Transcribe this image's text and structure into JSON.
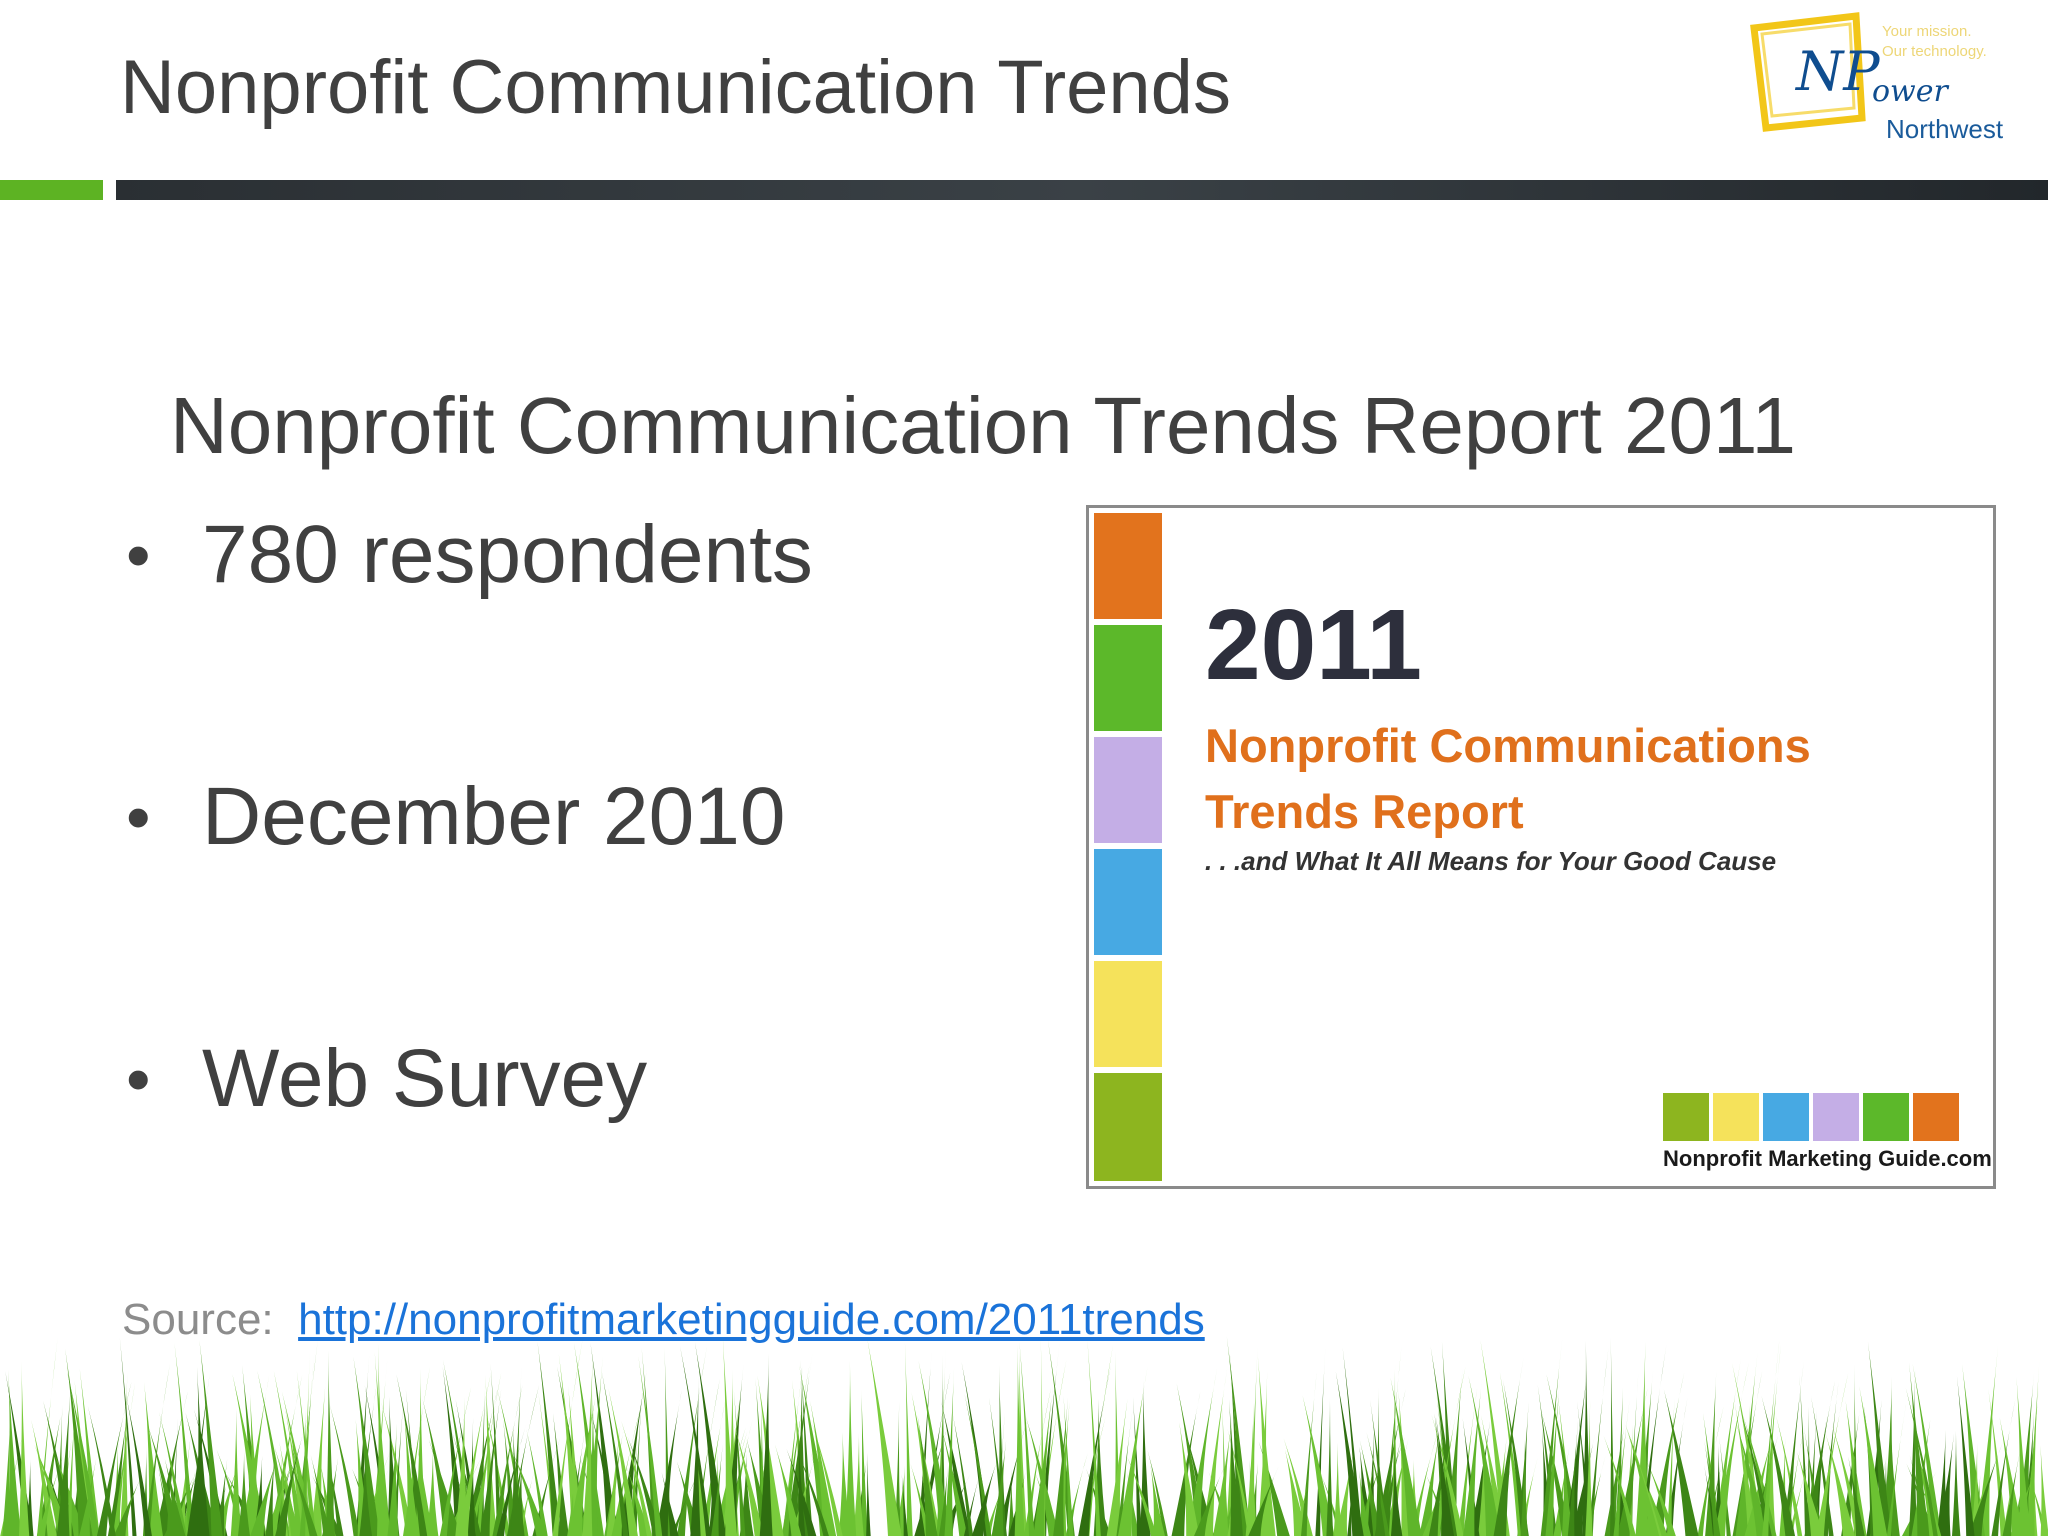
{
  "header": {
    "title": "Nonprofit Communication Trends",
    "logo": {
      "tagline_line1": "Your mission.",
      "tagline_line2": "Our technology.",
      "np": "NP",
      "ower": "ower",
      "northwest": "Northwest"
    }
  },
  "main": {
    "subtitle": "Nonprofit Communication Trends Report 2011",
    "bullets": [
      {
        "label": "780 respondents"
      },
      {
        "label": "December 2010"
      },
      {
        "label": "Web Survey"
      }
    ],
    "bullet_glyph": "•"
  },
  "cover": {
    "year": "2011",
    "title_line1": "Nonprofit Communications",
    "title_line2": "Trends Report",
    "tagline": ". . .and What It All Means for Your Good Cause",
    "brand": "Nonprofit Marketing Guide.com",
    "stripe_colors": [
      "#e2731d",
      "#5cb82a",
      "#c4aee6",
      "#47a9e3",
      "#f5e25b",
      "#8db51f"
    ],
    "swatch_colors": [
      "#8db51f",
      "#f5e25b",
      "#47a9e3",
      "#c4aee6",
      "#5cb82a",
      "#e2731d"
    ]
  },
  "footer": {
    "source_label": "Source:",
    "source_url": "http://nonprofitmarketingguide.com/2011trends"
  },
  "colors": {
    "accent_green": "#5db323",
    "text_dark": "#404040",
    "link_blue": "#1a73d9"
  }
}
